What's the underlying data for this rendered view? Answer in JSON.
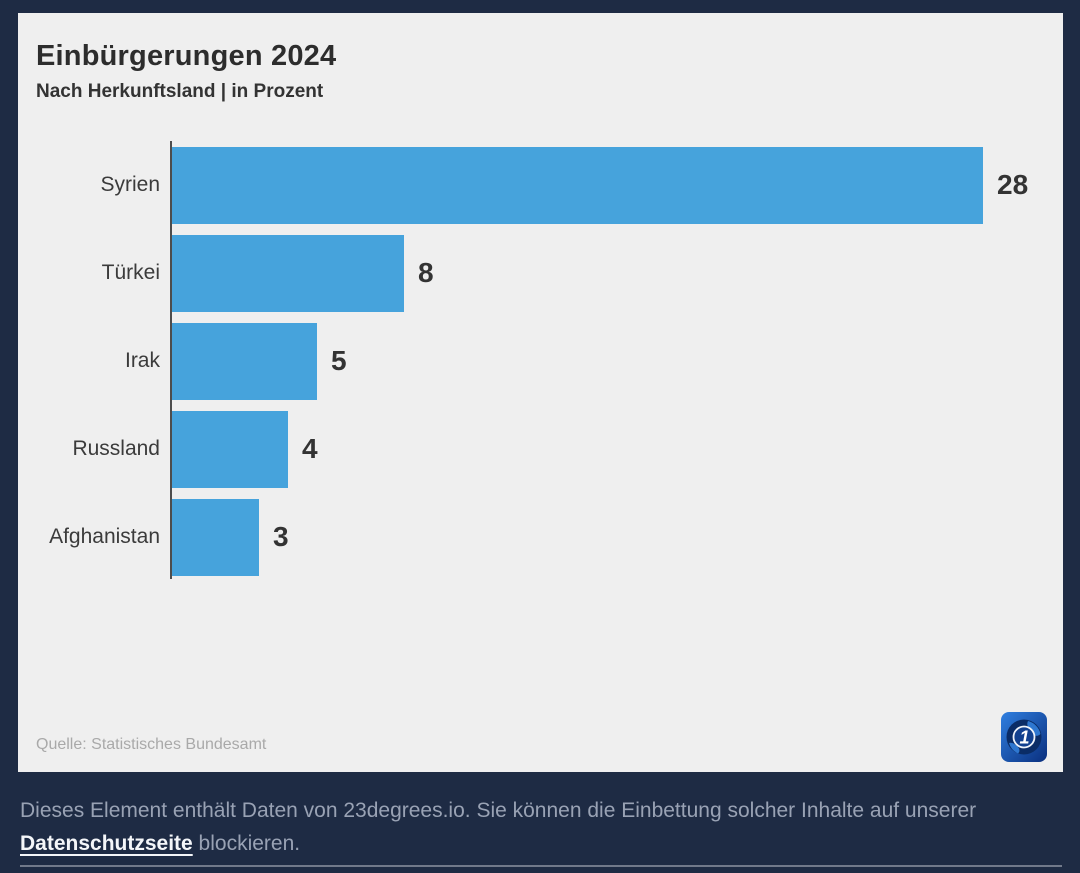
{
  "header": {
    "title": "Einbürgerungen 2024",
    "subtitle": "Nach Herkunftsland | in Prozent"
  },
  "chart_data": {
    "type": "bar",
    "orientation": "horizontal",
    "title": "Einbürgerungen 2024",
    "subtitle": "Nach Herkunftsland | in Prozent",
    "categories": [
      "Syrien",
      "Türkei",
      "Irak",
      "Russland",
      "Afghanistan"
    ],
    "values": [
      28,
      8,
      5,
      4,
      3
    ],
    "unit": "Prozent",
    "xlabel": "",
    "ylabel": "",
    "xlim": [
      0,
      28
    ],
    "grid": false,
    "value_labels": "end-of-bar",
    "bar_color": "#46a3dc"
  },
  "footer": {
    "source": "Quelle: Statistisches Bundesamt",
    "logo_icon": "ard-globe-logo"
  },
  "privacy_note": {
    "text_before_link": "Dieses Element enthält Daten von 23degrees.io. Sie können die Einbettung solcher Inhalte auf unserer ",
    "link_label": "Datenschutzseite",
    "text_after_link": " blockieren."
  },
  "colors": {
    "page_background": "#1e2b44",
    "card_background": "#efefef",
    "bar": "#46a3dc",
    "axis": "#4d4d4d",
    "footer_text": "#99a2b4"
  }
}
